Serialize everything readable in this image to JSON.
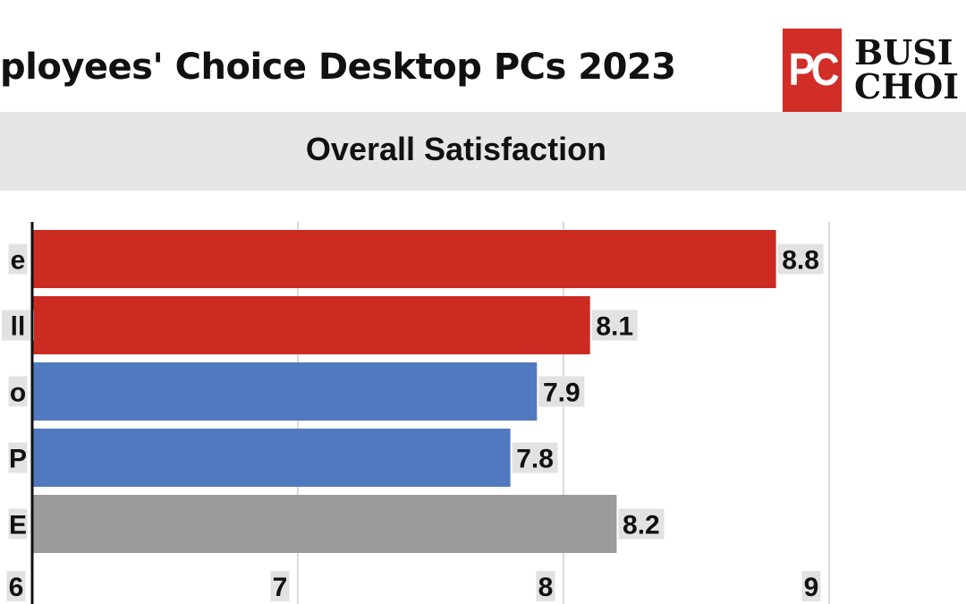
{
  "title": "ployees' Choice Desktop PCs 2023",
  "logo": {
    "mark": "PC",
    "line1": "BUSI",
    "line2": "CHOI",
    "color": "#d22d26"
  },
  "chart_data": {
    "type": "bar",
    "orientation": "horizontal",
    "title": "Overall Satisfaction",
    "categories": [
      "e",
      "ll",
      "o",
      "P",
      "E"
    ],
    "values": [
      8.8,
      8.1,
      7.9,
      7.8,
      8.2
    ],
    "colors": [
      "#cc2b22",
      "#cc2b22",
      "#5079c0",
      "#5079c0",
      "#9b9b9b"
    ],
    "xlim": [
      6,
      9
    ],
    "xticks": [
      "6",
      "7",
      "8",
      "9"
    ],
    "grid": true,
    "value_labels": [
      "8.8",
      "8.1",
      "7.9",
      "7.8",
      "8.2"
    ]
  }
}
